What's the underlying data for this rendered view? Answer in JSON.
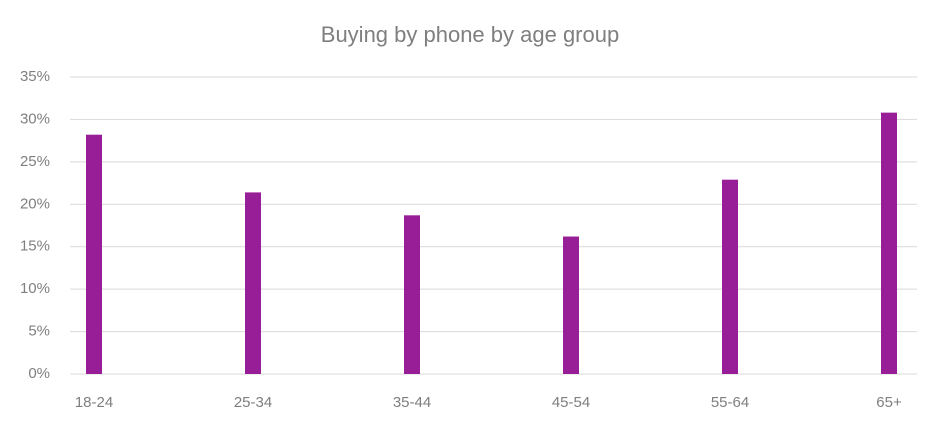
{
  "chart_data": {
    "type": "bar",
    "title": "Buying by phone by age group",
    "categories": [
      "18-24",
      "25-34",
      "35-44",
      "45-54",
      "55-64",
      "65+"
    ],
    "values": [
      28.2,
      21.4,
      18.7,
      16.2,
      22.9,
      30.8
    ],
    "color": "#981e98",
    "ylim": [
      0,
      35
    ],
    "yticks": [
      {
        "value": 0,
        "label": "0%"
      },
      {
        "value": 5,
        "label": "5%"
      },
      {
        "value": 10,
        "label": "10%"
      },
      {
        "value": 15,
        "label": "15%"
      },
      {
        "value": 20,
        "label": "20%"
      },
      {
        "value": 25,
        "label": "25%"
      },
      {
        "value": 30,
        "label": "30%"
      },
      {
        "value": 35,
        "label": "35%"
      }
    ],
    "grid": true
  }
}
